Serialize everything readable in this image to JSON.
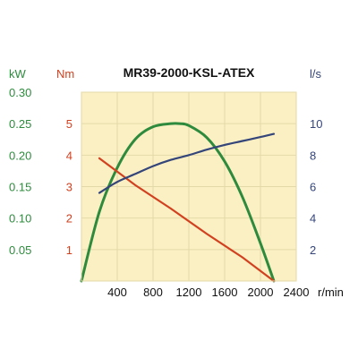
{
  "chart_data": {
    "type": "line",
    "title": "MR39-2000-KSL-ATEX",
    "xlabel": "r/min",
    "xlim": [
      0,
      2400
    ],
    "x_ticks": [
      "400",
      "800",
      "1200",
      "1600",
      "2000",
      "2400"
    ],
    "x_tick_values": [
      400,
      800,
      1200,
      1600,
      2000,
      2400
    ],
    "grid": true,
    "axes": {
      "power": {
        "unit": "kW",
        "ylim": [
          0,
          0.3
        ],
        "ticks": [
          "0.30",
          "0.25",
          "0.20",
          "0.15",
          "0.10",
          "0.05"
        ],
        "tick_values": [
          0.3,
          0.25,
          0.2,
          0.15,
          0.1,
          0.05
        ],
        "color": "#2e8b3e"
      },
      "torque": {
        "unit": "Nm",
        "ylim": [
          0,
          6
        ],
        "ticks": [
          "5",
          "4",
          "3",
          "2",
          "1"
        ],
        "tick_values": [
          5,
          4,
          3,
          2,
          1
        ],
        "color": "#d2411f"
      },
      "flow": {
        "unit": "l/s",
        "ylim": [
          0,
          12
        ],
        "ticks": [
          "10",
          "8",
          "6",
          "4",
          "2"
        ],
        "tick_values": [
          10,
          8,
          6,
          4,
          2
        ],
        "color": "#34457a"
      }
    },
    "series": [
      {
        "axis": "power",
        "color": "#2e8b3e",
        "x": [
          0,
          200,
          400,
          600,
          800,
          1000,
          1100,
          1200,
          1400,
          1600,
          1800,
          2000,
          2150
        ],
        "y": [
          0,
          0.11,
          0.18,
          0.225,
          0.245,
          0.25,
          0.25,
          0.247,
          0.228,
          0.19,
          0.133,
          0.06,
          0
        ]
      },
      {
        "axis": "torque",
        "color": "#d2411f",
        "x": [
          200,
          600,
          1000,
          1400,
          1800,
          2150
        ],
        "y": [
          3.9,
          3.05,
          2.3,
          1.5,
          0.75,
          0
        ]
      },
      {
        "axis": "flow",
        "color": "#34457a",
        "x": [
          200,
          400,
          600,
          800,
          1000,
          1200,
          1400,
          1600,
          1800,
          2000,
          2150
        ],
        "y": [
          5.6,
          6.3,
          6.8,
          7.3,
          7.7,
          8.0,
          8.35,
          8.65,
          8.9,
          9.15,
          9.35
        ]
      }
    ]
  }
}
